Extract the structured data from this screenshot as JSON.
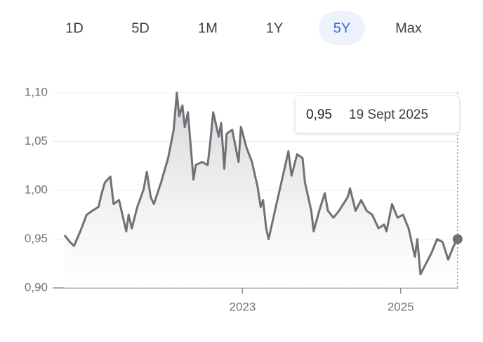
{
  "ranges": [
    "1D",
    "5D",
    "1M",
    "1Y",
    "5Y",
    "Max"
  ],
  "selected_range": "5Y",
  "chart_data": {
    "type": "line",
    "tooltip": {
      "value_label": "0,95",
      "date": "19 Sept 2025"
    },
    "xlim": [
      2020.6,
      2025.73
    ],
    "xticks": [
      2023,
      2025
    ],
    "ylim": [
      0.9,
      1.1
    ],
    "yticks": [
      {
        "value": 0.9,
        "label": "0,90"
      },
      {
        "value": 0.95,
        "label": "0,95"
      },
      {
        "value": 1.0,
        "label": "1,00"
      },
      {
        "value": 1.05,
        "label": "1,05"
      },
      {
        "value": 1.1,
        "label": "1,10"
      }
    ],
    "grid": true,
    "series": [
      {
        "color": "#6f7175",
        "x": [
          2020.75,
          2020.82,
          2020.87,
          2020.95,
          2021.03,
          2021.1,
          2021.18,
          2021.22,
          2021.26,
          2021.33,
          2021.37,
          2021.44,
          2021.53,
          2021.56,
          2021.6,
          2021.67,
          2021.75,
          2021.79,
          2021.84,
          2021.88,
          2021.97,
          2022.06,
          2022.13,
          2022.17,
          2022.2,
          2022.24,
          2022.27,
          2022.31,
          2022.34,
          2022.38,
          2022.41,
          2022.49,
          2022.56,
          2022.59,
          2022.63,
          2022.7,
          2022.73,
          2022.77,
          2022.8,
          2022.87,
          2022.95,
          2022.98,
          2023.05,
          2023.12,
          2023.19,
          2023.23,
          2023.26,
          2023.3,
          2023.33,
          2023.41,
          2023.48,
          2023.55,
          2023.58,
          2023.62,
          2023.69,
          2023.76,
          2023.79,
          2023.87,
          2023.9,
          2023.97,
          2024.04,
          2024.08,
          2024.15,
          2024.22,
          2024.33,
          2024.36,
          2024.43,
          2024.5,
          2024.57,
          2024.64,
          2024.72,
          2024.79,
          2024.82,
          2024.89,
          2024.96,
          2025.03,
          2025.1,
          2025.18,
          2025.21,
          2025.25,
          2025.32,
          2025.39,
          2025.46,
          2025.53,
          2025.6,
          2025.67,
          2025.72
        ],
        "values": [
          0.954,
          0.947,
          0.943,
          0.958,
          0.975,
          0.979,
          0.983,
          0.997,
          1.008,
          1.014,
          0.986,
          0.99,
          0.958,
          0.975,
          0.961,
          0.983,
          1.001,
          1.019,
          0.993,
          0.986,
          1.008,
          1.033,
          1.062,
          1.1,
          1.076,
          1.087,
          1.065,
          1.08,
          1.051,
          1.011,
          1.026,
          1.029,
          1.026,
          1.047,
          1.08,
          1.055,
          1.069,
          1.022,
          1.058,
          1.062,
          1.029,
          1.065,
          1.044,
          1.029,
          1.004,
          0.983,
          0.99,
          0.961,
          0.95,
          0.979,
          1.004,
          1.029,
          1.04,
          1.015,
          1.037,
          1.033,
          1.008,
          0.979,
          0.958,
          0.979,
          0.997,
          0.979,
          0.972,
          0.979,
          0.993,
          1.002,
          0.979,
          0.99,
          0.979,
          0.975,
          0.961,
          0.965,
          0.958,
          0.986,
          0.972,
          0.975,
          0.961,
          0.932,
          0.95,
          0.914,
          0.925,
          0.936,
          0.95,
          0.947,
          0.929,
          0.943,
          0.95
        ]
      }
    ]
  }
}
